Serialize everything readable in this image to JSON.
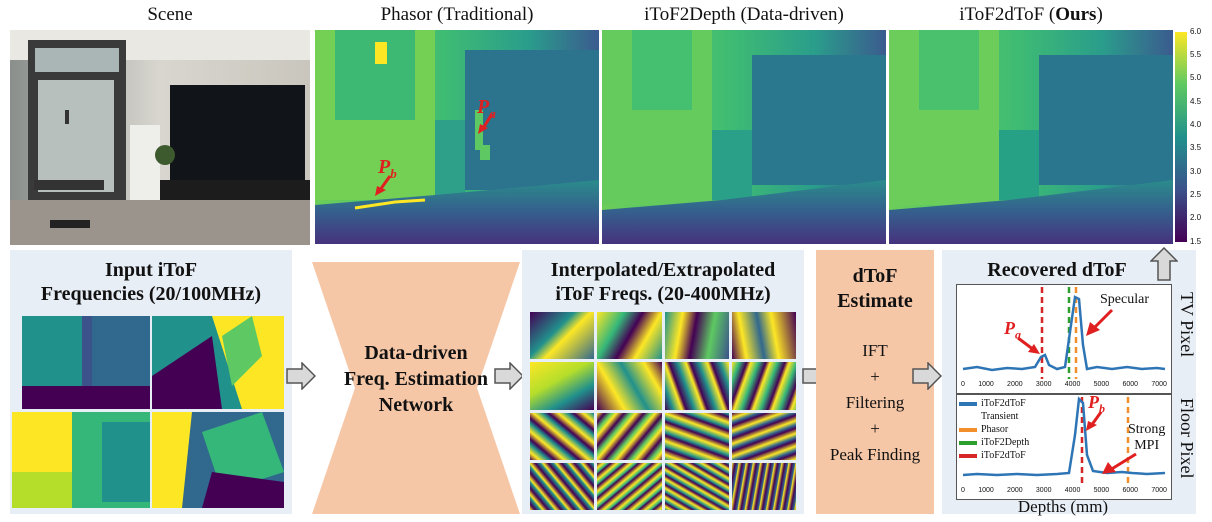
{
  "columns": {
    "scene": "Scene",
    "phasor": "Phasor (Traditional)",
    "itof2depth": "iToF2Depth (Data-driven)",
    "ours_prefix": "iToF2dToF (",
    "ours_bold": "Ours",
    "ours_suffix": ")"
  },
  "colorbar": {
    "ticks": [
      "6.0",
      "5.5",
      "5.0",
      "4.5",
      "4.0",
      "3.5",
      "3.0",
      "2.5",
      "2.0",
      "1.5"
    ]
  },
  "annotations": {
    "pa": "P",
    "pa_sub": "a",
    "pb": "P",
    "pb_sub": "b"
  },
  "pipeline": {
    "input_title_1": "Input iToF",
    "input_title_2": "Frequencies (20/100MHz)",
    "network_1": "Data-driven",
    "network_2": "Freq. Estimation",
    "network_3": "Network",
    "interp_title_1": "Interpolated/Extrapolated",
    "interp_title_2": "iToF Freqs. (20-400MHz)",
    "dtof_1": "dToF",
    "dtof_2": "Estimate",
    "step_ift": "IFT",
    "plus1": "+",
    "step_filter": "Filtering",
    "plus2": "+",
    "step_peak": "Peak Finding",
    "recovered": "Recovered dToF"
  },
  "plots": {
    "tv_label": "TV Pixel",
    "floor_label": "Floor Pixel",
    "xlabel": "Depths (mm)",
    "xticks": [
      "0",
      "1000",
      "2000",
      "3000",
      "4000",
      "5000",
      "6000",
      "7000"
    ],
    "tv_note": "Specular",
    "floor_note_1": "Strong",
    "floor_note_2": "MPI",
    "legend": [
      {
        "label": "iToF2dToF",
        "label2": "Transient",
        "color": "#2e75b6"
      },
      {
        "label": "Phasor",
        "color": "#f28e2b"
      },
      {
        "label": "iToF2Depth",
        "color": "#2ca02c"
      },
      {
        "label": "iToF2dToF",
        "color": "#d62728"
      }
    ]
  }
}
